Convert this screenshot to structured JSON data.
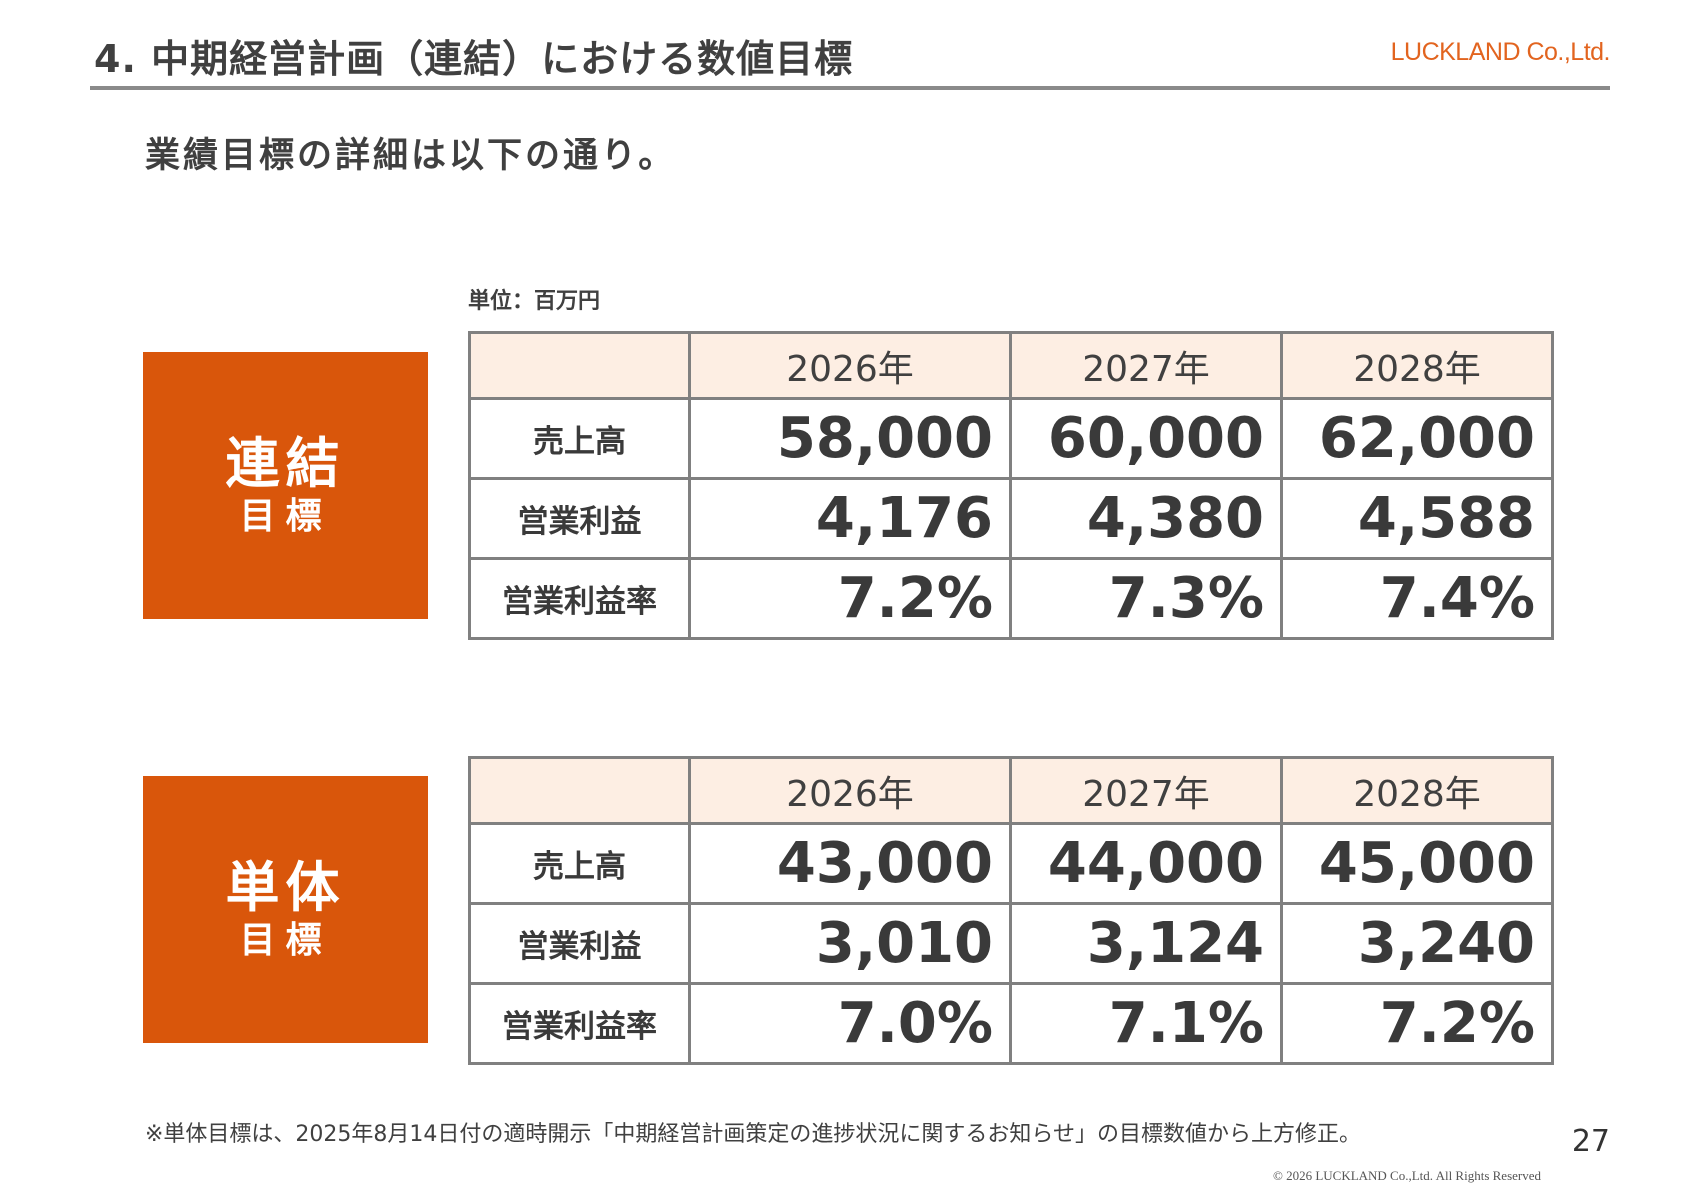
{
  "header": {
    "title": "4. 中期経営計画（連結）における数値目標",
    "logo_text": "LUCKLAND Co.,Ltd."
  },
  "subtitle": "業績目標の詳細は以下の通り。",
  "unit": "単位：百万円",
  "colors": {
    "accent": "#d9560b",
    "header_fill": "#fdeee3",
    "border": "#808080",
    "logo": "#e2641f"
  },
  "sections": [
    {
      "label_main": "連結",
      "label_sub": "目標",
      "years": [
        "2026年",
        "2027年",
        "2028年"
      ],
      "rows": [
        {
          "label": "売上高",
          "values": [
            "58,000",
            "60,000",
            "62,000"
          ]
        },
        {
          "label": "営業利益",
          "values": [
            "4,176",
            "4,380",
            "4,588"
          ]
        },
        {
          "label": "営業利益率",
          "values": [
            "7.2%",
            "7.3%",
            "7.4%"
          ]
        }
      ]
    },
    {
      "label_main": "単体",
      "label_sub": "目標",
      "years": [
        "2026年",
        "2027年",
        "2028年"
      ],
      "rows": [
        {
          "label": "売上高",
          "values": [
            "43,000",
            "44,000",
            "45,000"
          ]
        },
        {
          "label": "営業利益",
          "values": [
            "3,010",
            "3,124",
            "3,240"
          ]
        },
        {
          "label": "営業利益率",
          "values": [
            "7.0%",
            "7.1%",
            "7.2%"
          ]
        }
      ]
    }
  ],
  "footnote": "※単体目標は、2025年8月14日付の適時開示「中期経営計画策定の進捗状況に関するお知らせ」の目標数値から上方修正。",
  "page_number": "27",
  "copyright": "© 2026 LUCKLAND Co.,Ltd. All Rights Reserved"
}
